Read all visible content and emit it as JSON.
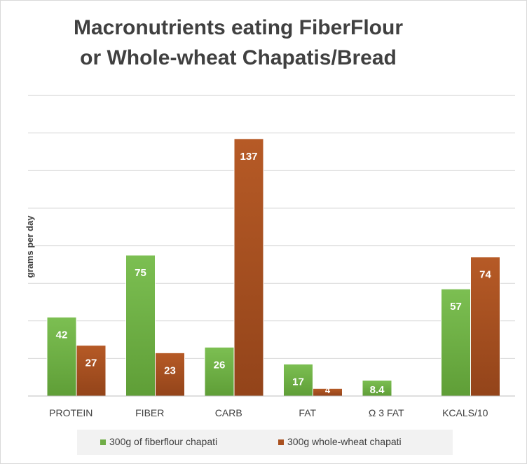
{
  "chart_data": {
    "type": "bar",
    "title_line1": "Macronutrients eating FiberFlour",
    "title_line2": "or Whole-wheat Chapatis/Bread",
    "ylabel": "grams per day",
    "categories": [
      "PROTEIN",
      "FIBER",
      "CARB",
      "FAT",
      "Ω 3 FAT",
      "KCALS/10"
    ],
    "series": [
      {
        "name": "300g of fiberflour chapati",
        "values": [
          42,
          75,
          26,
          17,
          8.4,
          57
        ],
        "labels": [
          "42",
          "75",
          "26",
          "17",
          "8.4",
          "57"
        ],
        "color": "#70ad47"
      },
      {
        "name": "300g whole-wheat chapati",
        "values": [
          27,
          23,
          137,
          4,
          null,
          74
        ],
        "labels": [
          "27",
          "23",
          "137",
          "4",
          "",
          "74"
        ],
        "color": "#a9501f"
      }
    ],
    "ylim": [
      0,
      160
    ],
    "grid": true,
    "legend_position": "bottom"
  }
}
